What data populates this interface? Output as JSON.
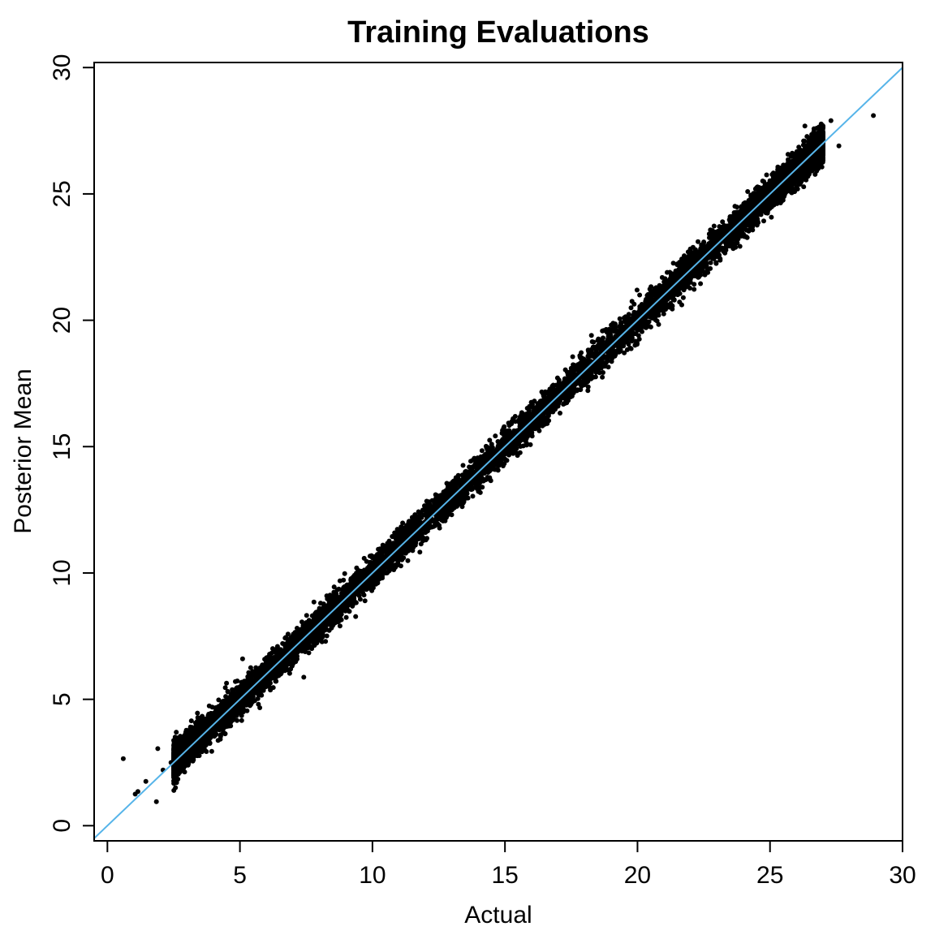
{
  "chart_data": {
    "type": "scatter",
    "title": "Training Evaluations",
    "xlabel": "Actual",
    "ylabel": "Posterior Mean",
    "xlim": [
      -0.5,
      30
    ],
    "ylim": [
      -0.6,
      30.2
    ],
    "x_ticks": [
      "0",
      "5",
      "10",
      "15",
      "20",
      "25",
      "30"
    ],
    "y_ticks": [
      "0",
      "5",
      "10",
      "15",
      "20",
      "25",
      "30"
    ],
    "grid": false,
    "legend": "none",
    "reference_line": {
      "slope": 1,
      "intercept": 0,
      "color": "#56B4E9"
    },
    "point_color": "#000000",
    "series": [
      {
        "points_sample": [
          [
            0.6,
            2.65
          ],
          [
            1.05,
            1.25
          ],
          [
            1.15,
            1.35
          ],
          [
            1.45,
            1.75
          ],
          [
            1.85,
            0.95
          ],
          [
            1.9,
            3.05
          ],
          [
            2.1,
            2.2
          ],
          [
            2.4,
            2.5
          ],
          [
            2.6,
            3.7
          ],
          [
            2.8,
            2.6
          ],
          [
            2.9,
            3.3
          ],
          [
            3.2,
            3.8
          ],
          [
            3.5,
            3.4
          ],
          [
            3.9,
            3.6
          ],
          [
            4.2,
            4.6
          ],
          [
            4.6,
            4.3
          ],
          [
            5.0,
            5.5
          ],
          [
            5.1,
            6.6
          ],
          [
            5.5,
            5.1
          ],
          [
            6.0,
            6.3
          ],
          [
            6.5,
            6.9
          ],
          [
            7.0,
            6.4
          ],
          [
            7.5,
            7.9
          ],
          [
            8.0,
            8.6
          ],
          [
            8.5,
            8.0
          ],
          [
            9.0,
            9.4
          ],
          [
            9.5,
            9.1
          ],
          [
            10.0,
            10.6
          ],
          [
            10.5,
            10.0
          ],
          [
            11.0,
            11.4
          ],
          [
            11.5,
            12.2
          ],
          [
            12.0,
            11.6
          ],
          [
            12.5,
            13.0
          ],
          [
            13.0,
            12.5
          ],
          [
            13.5,
            14.0
          ],
          [
            14.0,
            13.6
          ],
          [
            14.5,
            15.1
          ],
          [
            15.0,
            14.5
          ],
          [
            15.5,
            16.0
          ],
          [
            16.0,
            15.6
          ],
          [
            16.5,
            17.1
          ],
          [
            17.0,
            16.6
          ],
          [
            17.5,
            18.1
          ],
          [
            18.0,
            17.5
          ],
          [
            18.5,
            19.2
          ],
          [
            19.0,
            18.6
          ],
          [
            19.5,
            20.1
          ],
          [
            20.0,
            19.6
          ],
          [
            20.5,
            21.0
          ],
          [
            21.0,
            20.6
          ],
          [
            21.5,
            22.2
          ],
          [
            22.0,
            21.5
          ],
          [
            22.5,
            23.1
          ],
          [
            23.0,
            22.6
          ],
          [
            23.5,
            24.1
          ],
          [
            24.0,
            23.4
          ],
          [
            24.5,
            25.0
          ],
          [
            25.0,
            24.6
          ],
          [
            25.5,
            25.9
          ],
          [
            26.0,
            25.6
          ],
          [
            26.5,
            26.9
          ],
          [
            27.0,
            26.8
          ],
          [
            27.3,
            27.9
          ],
          [
            27.6,
            26.9
          ],
          [
            28.9,
            28.1
          ]
        ],
        "density_notes": "dense band of points around y = x from about 1 to 29"
      }
    ]
  }
}
